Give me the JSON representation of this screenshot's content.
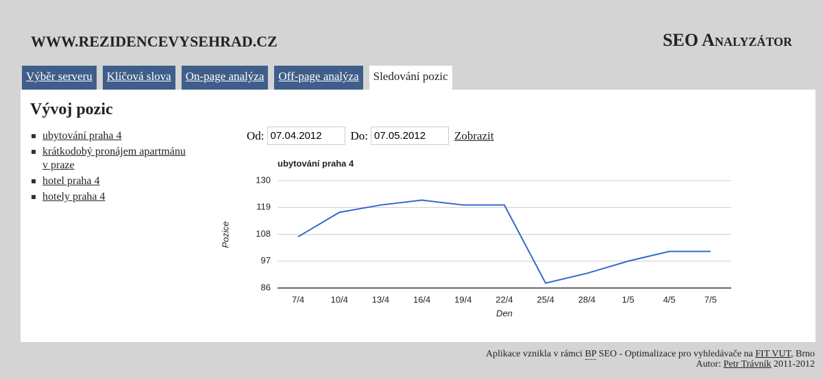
{
  "header": {
    "site": "WWW.REZIDENCEVYSEHRAD.CZ",
    "app": "SEO Analyzátor"
  },
  "tabs": [
    "Výběr serveru",
    "Klíčová slova",
    "On-page analýza",
    "Off-page analýza",
    "Sledování pozic"
  ],
  "heading": "Vývoj pozic",
  "keywords": [
    "ubytování praha 4",
    "krátkodobý pronájem apartmánu v praze",
    "hotel praha 4",
    "hotely praha 4"
  ],
  "form": {
    "from_label": "Od:",
    "from": "07.04.2012",
    "to_label": "Do:",
    "to": "07.05.2012",
    "submit": "Zobrazit"
  },
  "chart_data": {
    "type": "line",
    "title": "ubytování praha 4",
    "x_label": "Den",
    "y_label": "Pozice",
    "categories": [
      "7/4",
      "10/4",
      "13/4",
      "16/4",
      "19/4",
      "22/4",
      "25/4",
      "28/4",
      "1/5",
      "4/5",
      "7/5"
    ],
    "values": [
      107,
      117,
      120,
      122,
      120,
      120,
      88,
      92,
      97,
      101,
      101
    ],
    "color": "#3366cc",
    "ylim": [
      86,
      130
    ],
    "yticks": [
      86,
      97,
      108,
      119,
      130
    ],
    "grid": true
  },
  "footer": {
    "line1": [
      "Aplikace vznikla v rámci",
      "BP",
      "SEO - Optimalizace pro vyhledávače na",
      "FIT VUT",
      ", Brno"
    ],
    "line2": [
      "Autor:",
      "Petr Trávník",
      "2011-2012"
    ]
  }
}
